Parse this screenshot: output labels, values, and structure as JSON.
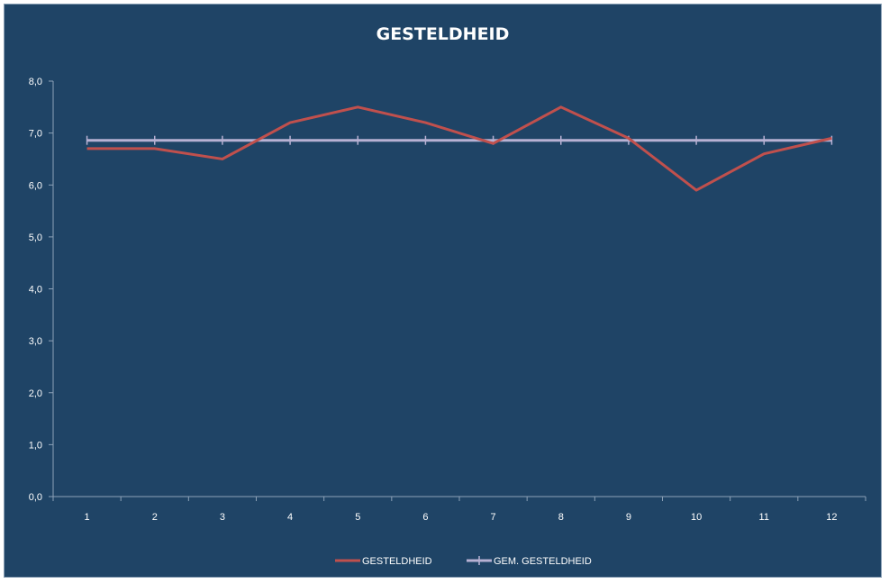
{
  "chart_data": {
    "type": "line",
    "title": "GESTELDHEID",
    "xlabel": "",
    "ylabel": "",
    "categories": [
      "1",
      "2",
      "3",
      "4",
      "5",
      "6",
      "7",
      "8",
      "9",
      "10",
      "11",
      "12"
    ],
    "ylim": [
      0,
      8
    ],
    "yticks": [
      "0,0",
      "1,0",
      "2,0",
      "3,0",
      "4,0",
      "5,0",
      "6,0",
      "7,0",
      "8,0"
    ],
    "grid": false,
    "legend_position": "bottom",
    "series": [
      {
        "name": "GESTELDHEID",
        "color": "#c0504d",
        "marker": "none",
        "values": [
          6.7,
          6.7,
          6.5,
          7.2,
          7.5,
          7.2,
          6.8,
          7.5,
          6.9,
          5.9,
          6.6,
          6.9
        ]
      },
      {
        "name": "GEM. GESTELDHEID",
        "color": "#b7b1d3",
        "marker": "plus",
        "values": [
          6.86,
          6.86,
          6.86,
          6.86,
          6.86,
          6.86,
          6.86,
          6.86,
          6.86,
          6.86,
          6.86,
          6.86
        ]
      }
    ]
  }
}
